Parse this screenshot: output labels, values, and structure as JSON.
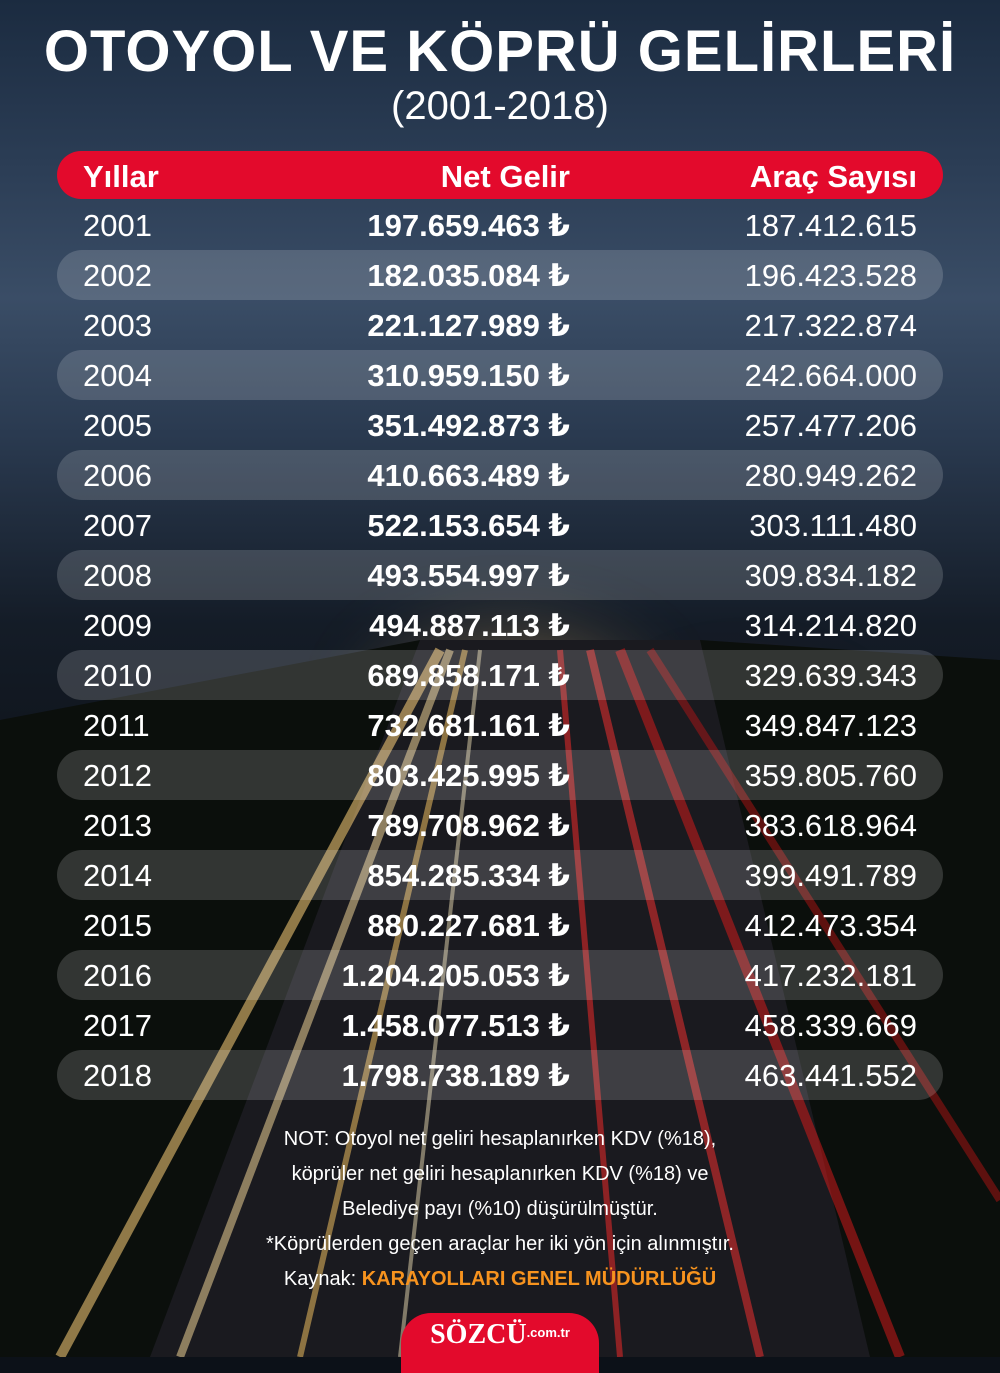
{
  "title": "OTOYOL VE KÖPRÜ GELİRLERİ",
  "subtitle": "(2001-2018)",
  "chart_data": {
    "type": "table",
    "columns": [
      "Yıllar",
      "Net Gelir",
      "Araç Sayısı"
    ],
    "rows": [
      {
        "year": "2001",
        "revenue": "197.659.463 ₺",
        "vehicles": "187.412.615"
      },
      {
        "year": "2002",
        "revenue": "182.035.084 ₺",
        "vehicles": "196.423.528"
      },
      {
        "year": "2003",
        "revenue": "221.127.989 ₺",
        "vehicles": "217.322.874"
      },
      {
        "year": "2004",
        "revenue": "310.959.150 ₺",
        "vehicles": "242.664.000"
      },
      {
        "year": "2005",
        "revenue": "351.492.873 ₺",
        "vehicles": "257.477.206"
      },
      {
        "year": "2006",
        "revenue": "410.663.489 ₺",
        "vehicles": "280.949.262"
      },
      {
        "year": "2007",
        "revenue": "522.153.654 ₺",
        "vehicles": "303.111.480"
      },
      {
        "year": "2008",
        "revenue": "493.554.997 ₺",
        "vehicles": "309.834.182"
      },
      {
        "year": "2009",
        "revenue": "494.887.113 ₺",
        "vehicles": "314.214.820"
      },
      {
        "year": "2010",
        "revenue": "689.858.171 ₺",
        "vehicles": "329.639.343"
      },
      {
        "year": "2011",
        "revenue": "732.681.161 ₺",
        "vehicles": "349.847.123"
      },
      {
        "year": "2012",
        "revenue": "803.425.995 ₺",
        "vehicles": "359.805.760"
      },
      {
        "year": "2013",
        "revenue": "789.708.962 ₺",
        "vehicles": "383.618.964"
      },
      {
        "year": "2014",
        "revenue": "854.285.334 ₺",
        "vehicles": "399.491.789"
      },
      {
        "year": "2015",
        "revenue": "880.227.681 ₺",
        "vehicles": "412.473.354"
      },
      {
        "year": "2016",
        "revenue": "1.204.205.053 ₺",
        "vehicles": "417.232.181"
      },
      {
        "year": "2017",
        "revenue": "1.458.077.513 ₺",
        "vehicles": "458.339.669"
      },
      {
        "year": "2018",
        "revenue": "1.798.738.189 ₺",
        "vehicles": "463.441.552"
      }
    ]
  },
  "notes": {
    "line1": "NOT: Otoyol net geliri hesaplanırken KDV (%18),",
    "line2": "köprüler net geliri hesaplanırken KDV (%18) ve",
    "line3": "Belediye payı (%10) düşürülmüştür.",
    "line4": "*Köprülerden geçen araçlar her iki yön için alınmıştır.",
    "source_label": "Kaynak:",
    "source_name": "KARAYOLLARI GENEL MÜDÜRLÜĞÜ"
  },
  "logo": {
    "main": "SÖZCÜ",
    "sub": ".com.tr"
  },
  "colors": {
    "accent": "#e30a2c",
    "source": "#f7931e",
    "row_stripe": "rgba(255,255,255,0.16)"
  }
}
